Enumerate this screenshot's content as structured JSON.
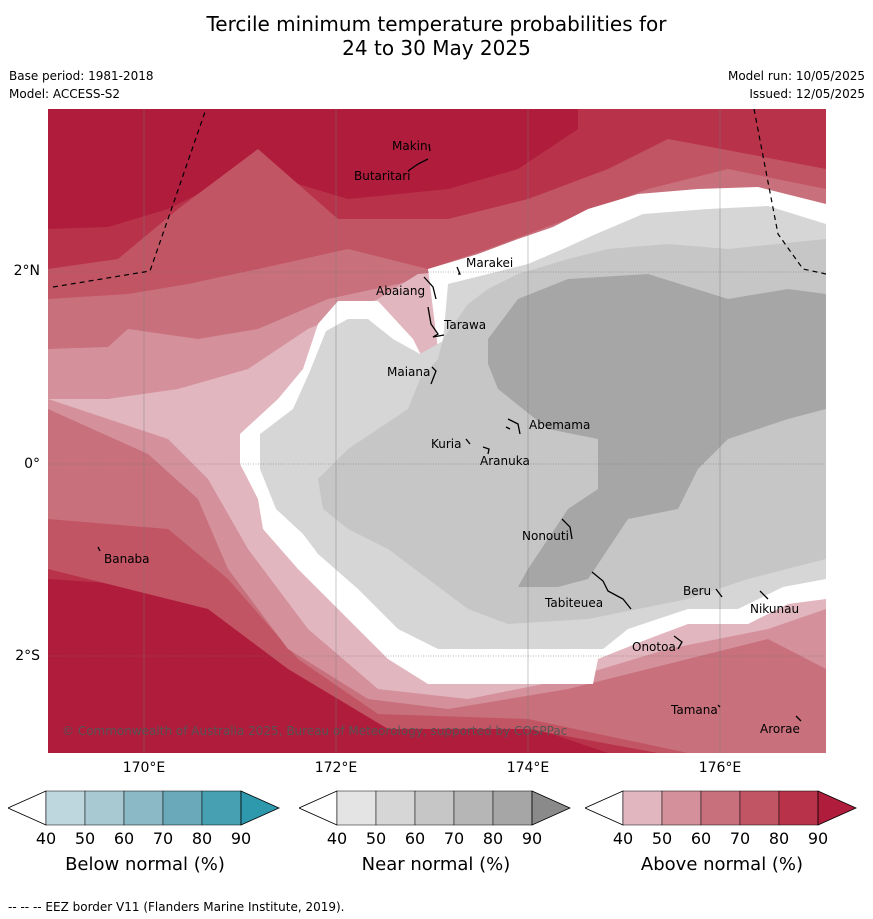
{
  "title_line1": "Tercile minimum temperature probabilities for",
  "title_line2": "24 to 30 May 2025",
  "base_period": "Base period: 1981-2018",
  "model": "Model: ACCESS-S2",
  "model_run": "Model run: 10/05/2025",
  "issued": "Issued: 12/05/2025",
  "lat_labels": [
    "2°N",
    "0°",
    "2°S"
  ],
  "lon_labels": [
    "170°E",
    "172°E",
    "174°E",
    "176°E"
  ],
  "islands": {
    "makin": "Makin",
    "butaritari": "Butaritari",
    "marakei": "Marakei",
    "abaiang": "Abaiang",
    "tarawa": "Tarawa",
    "maiana": "Maiana",
    "abemama": "Abemama",
    "kuria": "Kuria",
    "aranuka": "Aranuka",
    "nonouti": "Nonouti",
    "banaba": "Banaba",
    "beru": "Beru",
    "nikunau": "Nikunau",
    "tabiteuea": "Tabiteuea",
    "onotoa": "Onotoa",
    "tamana": "Tamana",
    "arorae": "Arorae"
  },
  "copyright": "© Commonwealth of Australia 2025, Bureau of Meteorology, supported by COSPPac",
  "legends": {
    "below": {
      "title": "Below normal (%)",
      "ticks": [
        "40",
        "50",
        "60",
        "70",
        "80",
        "90"
      ],
      "colors": [
        "#bed6de",
        "#a8c9d2",
        "#8bb9c6",
        "#69a9ba",
        "#46a0b2",
        "#2e98ac"
      ]
    },
    "near": {
      "title": "Near normal (%)",
      "ticks": [
        "40",
        "50",
        "60",
        "70",
        "80",
        "90"
      ],
      "colors": [
        "#e4e4e4",
        "#d6d6d6",
        "#c6c6c6",
        "#b6b6b6",
        "#a6a6a6",
        "#8a8a8a"
      ]
    },
    "above": {
      "title": "Above normal (%)",
      "ticks": [
        "40",
        "50",
        "60",
        "70",
        "80",
        "90"
      ],
      "colors": [
        "#e2b6bf",
        "#d4919c",
        "#c8707c",
        "#c25564",
        "#b8324a",
        "#b01c3c"
      ]
    }
  },
  "footer": "--  --  -- EEZ border V11 (Flanders Marine Institute, 2019)."
}
